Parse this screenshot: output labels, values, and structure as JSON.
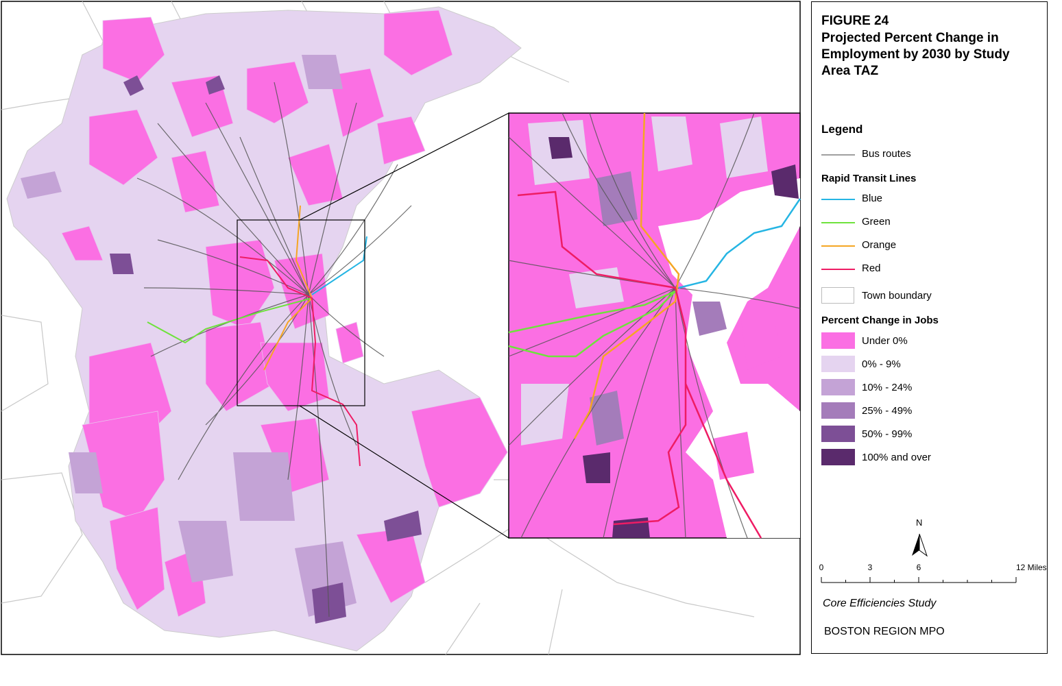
{
  "figure": {
    "label": "FIGURE 24",
    "title": "Projected Percent Change in Employment by 2030 by Study Area TAZ"
  },
  "legend": {
    "title": "Legend",
    "bus_routes": "Bus routes",
    "rapid_transit_title": "Rapid Transit Lines",
    "lines": [
      {
        "label": "Blue",
        "color": "#25b5e3"
      },
      {
        "label": "Green",
        "color": "#6ee23c"
      },
      {
        "label": "Orange",
        "color": "#f5a623"
      },
      {
        "label": "Red",
        "color": "#ee1c64"
      }
    ],
    "town_boundary": "Town boundary",
    "percent_title": "Percent Change in Jobs",
    "classes": [
      {
        "label": "Under 0%",
        "color": "#fb6fe3"
      },
      {
        "label": "0% - 9%",
        "color": "#e5d4f0"
      },
      {
        "label": "10% - 24%",
        "color": "#c4a3d6"
      },
      {
        "label": "25% - 49%",
        "color": "#a47cba"
      },
      {
        "label": "50% - 99%",
        "color": "#7d4f96"
      },
      {
        "label": "100% and over",
        "color": "#5a2a6c"
      }
    ]
  },
  "north": "N",
  "scale": {
    "labels": [
      "0",
      "3",
      "6",
      "12 Miles"
    ]
  },
  "footer": {
    "study": "Core Efficiencies Study",
    "org": "BOSTON REGION MPO"
  }
}
